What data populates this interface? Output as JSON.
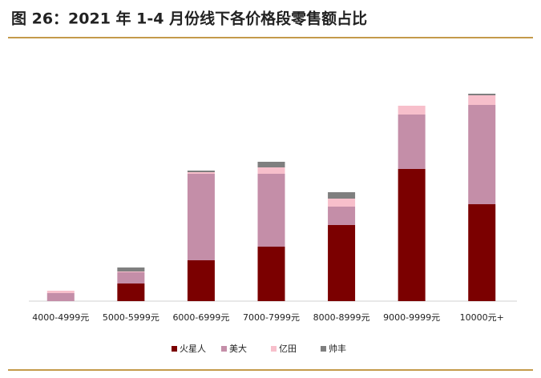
{
  "chart_data": {
    "type": "stacked_bar",
    "title": "图 26：2021 年 1-4 月份线下各价格段零售额占比",
    "categories": [
      "4000-4999元",
      "5000-5999元",
      "6000-6999元",
      "7000-7999元",
      "8000-8999元",
      "9000-9999元",
      "10000元+"
    ],
    "series": [
      {
        "name": "火星人",
        "color": "#7b0000",
        "values": [
          0,
          22,
          51,
          68,
          95,
          165,
          121
        ]
      },
      {
        "name": "美大",
        "color": "#c48ea8",
        "values": [
          10,
          14,
          108,
          91,
          23,
          68,
          124
        ]
      },
      {
        "name": "亿田",
        "color": "#f7bfcb",
        "values": [
          3,
          1,
          2,
          8,
          10,
          11,
          12
        ]
      },
      {
        "name": "帅丰",
        "color": "#7f7f7f",
        "values": [
          0,
          5,
          2,
          7,
          8,
          0,
          2
        ]
      }
    ]
  }
}
